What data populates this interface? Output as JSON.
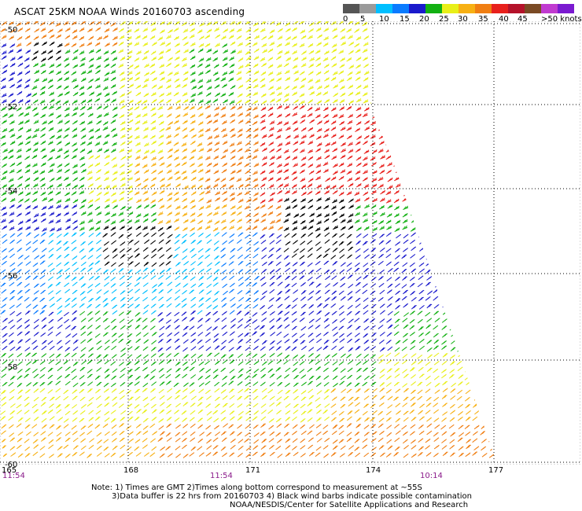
{
  "title": "ASCAT 25KM NOAA Winds 20160703 ascending",
  "legend": {
    "colors": [
      "#555555",
      "#9a9a9a",
      "#00bfff",
      "#0a7bff",
      "#1a1acc",
      "#12b012",
      "#e8ef18",
      "#f7b013",
      "#f07e12",
      "#e8201c",
      "#b4122a",
      "#7a4a24",
      "#c03ad0",
      "#7a1ad0"
    ],
    "labels": [
      "0",
      "5",
      "10",
      "15",
      "20",
      "25",
      "30",
      "35",
      "40",
      "45",
      ">50 knots"
    ]
  },
  "map": {
    "lat_labels": [
      "-50",
      "-52",
      "-54",
      "-56",
      "-58",
      "-60"
    ],
    "lon_labels": [
      "165",
      "168",
      "171",
      "174",
      "177"
    ],
    "time_labels": [
      "11:54",
      "11:54",
      "10:14"
    ],
    "speed_zones": [
      {
        "name": "red",
        "color": "#e8201c"
      },
      {
        "name": "orange",
        "color": "#f07e12"
      },
      {
        "name": "amber",
        "color": "#f7b013"
      },
      {
        "name": "yellow",
        "color": "#e8ef18"
      },
      {
        "name": "green",
        "color": "#12b012"
      },
      {
        "name": "blue",
        "color": "#1a1acc"
      },
      {
        "name": "azure",
        "color": "#0a7bff"
      },
      {
        "name": "cyan",
        "color": "#00bfff"
      },
      {
        "name": "black",
        "color": "#000000"
      }
    ]
  },
  "notes": {
    "line1": "Note: 1) Times are GMT 2)Times along bottom correspond to measurement at ~55S",
    "line2": "3)Data buffer is 22 hrs from 20160703 4) Black wind barbs indicate possible contamination",
    "line3": "NOAA/NESDIS/Center for Satellite Applications and Research"
  }
}
